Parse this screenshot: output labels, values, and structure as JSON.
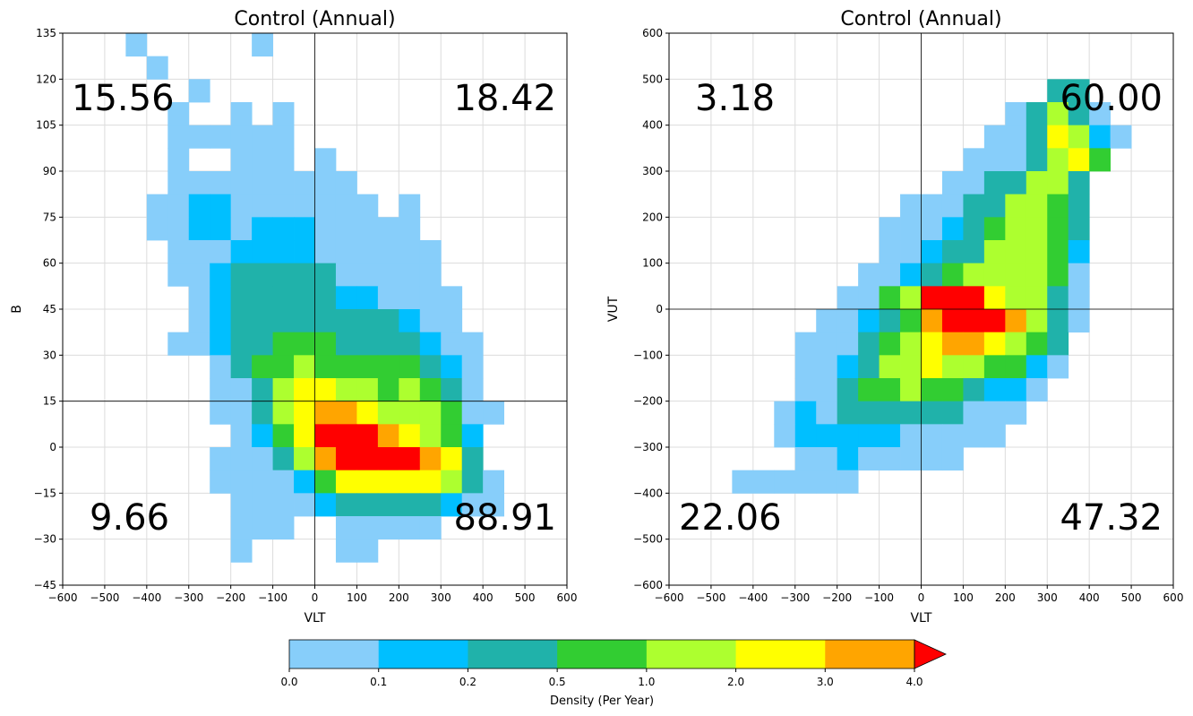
{
  "colorbar": {
    "label": "Density (Per Year)",
    "bounds": [
      0.0,
      0.1,
      0.2,
      0.5,
      1.0,
      2.0,
      3.0,
      4.0
    ],
    "tick_labels": [
      "0.0",
      "0.1",
      "0.2",
      "0.5",
      "1.0",
      "2.0",
      "3.0",
      "4.0"
    ],
    "colors": [
      "#87cefa",
      "#00bfff",
      "#20b2aa",
      "#32cd32",
      "#adff2f",
      "#ffff00",
      "#ffa500"
    ],
    "extend_color": "#ff0000"
  },
  "chart_data": [
    {
      "type": "heatmap",
      "title": "Control (Annual)",
      "xlabel": "VLT",
      "ylabel": "B",
      "xlim": [
        -600,
        600
      ],
      "ylim": [
        -45,
        135
      ],
      "xticks": [
        -600,
        -500,
        -400,
        -300,
        -200,
        -100,
        0,
        100,
        200,
        300,
        400,
        500,
        600
      ],
      "yticks": [
        -45,
        -30,
        -15,
        0,
        15,
        30,
        45,
        60,
        75,
        90,
        105,
        120,
        135
      ],
      "grid": true,
      "x_bin_width": 50,
      "y_bin_width": 7.5,
      "quadrant_lines": {
        "x": 0,
        "y": 15
      },
      "quadrant_values": {
        "top_left": "15.56",
        "top_right": "18.42",
        "bottom_left": "9.66",
        "bottom_right": "88.91"
      },
      "row_y_starts": [
        127.5,
        120,
        112.5,
        105,
        97.5,
        90,
        82.5,
        75,
        67.5,
        60,
        52.5,
        45,
        37.5,
        30,
        22.5,
        15,
        7.5,
        0,
        -7.5,
        -15,
        -22.5,
        -30,
        -37.5
      ],
      "rows": [
        [
          "-450:1",
          "-150:1"
        ],
        [
          "-400:1"
        ],
        [
          "-300:1"
        ],
        [
          "-350:1",
          "-200:1",
          "-100:1"
        ],
        [
          "-350:1",
          "-300:1",
          "-250:1",
          "-200:1",
          "-150:1",
          "-100:1"
        ],
        [
          "-350:1",
          "-200:1",
          "-150:1",
          "-100:1",
          "0:1"
        ],
        [
          "-350:1",
          "-300:1",
          "-250:1",
          "-200:1",
          "-150:1",
          "-100:1",
          "-50:1",
          "0:1",
          "50:1"
        ],
        [
          "-400:1",
          "-350:1",
          "-300:2",
          "-250:2",
          "-200:1",
          "-150:1",
          "-100:1",
          "-50:1",
          "0:1",
          "50:1",
          "100:1",
          "200:1"
        ],
        [
          "-400:1",
          "-350:1",
          "-300:2",
          "-250:2",
          "-200:1",
          "-150:2",
          "-100:2",
          "-50:2",
          "0:1",
          "50:1",
          "100:1",
          "150:1",
          "200:1"
        ],
        [
          "-350:1",
          "-300:1",
          "-250:1",
          "-200:2",
          "-150:2",
          "-100:2",
          "-50:2",
          "0:1",
          "50:1",
          "100:1",
          "150:1",
          "200:1",
          "250:1"
        ],
        [
          "-350:1",
          "-300:1",
          "-250:2",
          "-200:3",
          "-150:3",
          "-100:3",
          "-50:3",
          "0:3",
          "50:1",
          "100:1",
          "150:1",
          "200:1",
          "250:1"
        ],
        [
          "-300:1",
          "-250:2",
          "-200:3",
          "-150:3",
          "-100:3",
          "-50:3",
          "0:3",
          "50:2",
          "100:2",
          "150:1",
          "200:1",
          "250:1",
          "300:1"
        ],
        [
          "-300:1",
          "-250:2",
          "-200:3",
          "-150:3",
          "-100:3",
          "-50:3",
          "0:3",
          "50:3",
          "100:3",
          "150:3",
          "200:2",
          "250:1",
          "300:1"
        ],
        [
          "-350:1",
          "-300:1",
          "-250:2",
          "-200:3",
          "-150:3",
          "-100:4",
          "-50:4",
          "0:4",
          "50:3",
          "100:3",
          "150:3",
          "200:3",
          "250:2",
          "300:1",
          "350:1"
        ],
        [
          "-250:1",
          "-200:3",
          "-150:4",
          "-100:4",
          "-50:5",
          "0:4",
          "50:4",
          "100:4",
          "150:4",
          "200:4",
          "250:3",
          "300:2",
          "350:1"
        ],
        [
          "-250:1",
          "-200:1",
          "-150:3",
          "-100:5",
          "-50:6",
          "0:6",
          "50:5",
          "100:5",
          "150:4",
          "200:5",
          "250:4",
          "300:3",
          "350:1"
        ],
        [
          "-250:1",
          "-200:1",
          "-150:3",
          "-100:5",
          "-50:6",
          "0:7",
          "50:7",
          "100:6",
          "150:5",
          "200:5",
          "250:5",
          "300:4",
          "350:1",
          "400:1"
        ],
        [
          "-200:1",
          "-150:2",
          "-100:4",
          "-50:6",
          "0:8",
          "50:8",
          "100:8",
          "150:7",
          "200:6",
          "250:5",
          "300:4",
          "350:2"
        ],
        [
          "-250:1",
          "-200:1",
          "-150:1",
          "-100:3",
          "-50:5",
          "0:7",
          "50:8",
          "100:8",
          "150:8",
          "200:8",
          "250:7",
          "300:6",
          "350:3"
        ],
        [
          "-250:1",
          "-200:1",
          "-150:1",
          "-100:1",
          "-50:2",
          "0:4",
          "50:6",
          "100:6",
          "150:6",
          "200:6",
          "250:6",
          "300:5",
          "350:3",
          "400:1"
        ],
        [
          "-200:1",
          "-150:1",
          "-100:1",
          "-50:1",
          "0:2",
          "50:3",
          "100:3",
          "150:3",
          "200:3",
          "250:3",
          "300:2",
          "350:1",
          "400:1"
        ],
        [
          "-200:1",
          "-150:1",
          "-100:1",
          "50:1",
          "100:1",
          "150:1",
          "200:1",
          "250:1"
        ],
        [
          "-200:1",
          "50:1",
          "100:1"
        ]
      ]
    },
    {
      "type": "heatmap",
      "title": "Control (Annual)",
      "xlabel": "VLT",
      "ylabel": "VUT",
      "xlim": [
        -600,
        600
      ],
      "ylim": [
        -600,
        600
      ],
      "xticks": [
        -600,
        -500,
        -400,
        -300,
        -200,
        -100,
        0,
        100,
        200,
        300,
        400,
        500,
        600
      ],
      "yticks": [
        -600,
        -500,
        -400,
        -300,
        -200,
        -100,
        0,
        100,
        200,
        300,
        400,
        500,
        600
      ],
      "grid": true,
      "x_bin_width": 50,
      "y_bin_width": 50,
      "quadrant_lines": {
        "x": 0,
        "y": 0
      },
      "quadrant_values": {
        "top_left": "3.18",
        "top_right": "60.00",
        "bottom_left": "22.06",
        "bottom_right": "47.32"
      },
      "row_y_starts": [
        450,
        400,
        350,
        300,
        250,
        200,
        150,
        100,
        50,
        0,
        -50,
        -100,
        -150,
        -200,
        -250,
        -300,
        -350,
        -400
      ],
      "rows": [
        [
          "300:3",
          "350:3"
        ],
        [
          "200:1",
          "250:3",
          "300:5",
          "350:3",
          "400:1"
        ],
        [
          "150:1",
          "200:1",
          "250:3",
          "300:6",
          "350:5",
          "400:2",
          "450:1"
        ],
        [
          "100:1",
          "150:1",
          "200:1",
          "250:3",
          "300:5",
          "350:6",
          "400:4"
        ],
        [
          "50:1",
          "100:1",
          "150:3",
          "200:3",
          "250:5",
          "300:5",
          "350:3"
        ],
        [
          "-50:1",
          "0:1",
          "50:1",
          "100:3",
          "150:3",
          "200:5",
          "250:5",
          "300:4",
          "350:3"
        ],
        [
          "-100:1",
          "-50:1",
          "0:1",
          "50:2",
          "100:3",
          "150:4",
          "200:5",
          "250:5",
          "300:4",
          "350:3"
        ],
        [
          "-100:1",
          "-50:1",
          "0:2",
          "50:3",
          "100:3",
          "150:5",
          "200:5",
          "250:5",
          "300:4",
          "350:2"
        ],
        [
          "-150:1",
          "-100:1",
          "-50:2",
          "0:3",
          "50:4",
          "100:5",
          "150:5",
          "200:5",
          "250:5",
          "300:4",
          "350:1"
        ],
        [
          "-200:1",
          "-150:1",
          "-100:4",
          "-50:5",
          "0:8",
          "50:8",
          "100:8",
          "150:6",
          "200:5",
          "250:5",
          "300:3",
          "350:1"
        ],
        [
          "-250:1",
          "-200:1",
          "-150:2",
          "-100:3",
          "-50:4",
          "0:7",
          "50:8",
          "100:8",
          "150:8",
          "200:7",
          "250:5",
          "300:3",
          "350:1"
        ],
        [
          "-300:1",
          "-250:1",
          "-200:1",
          "-150:3",
          "-100:4",
          "-50:5",
          "0:6",
          "50:7",
          "100:7",
          "150:6",
          "200:5",
          "250:4",
          "300:3"
        ],
        [
          "-300:1",
          "-250:1",
          "-200:2",
          "-150:3",
          "-100:5",
          "-50:5",
          "0:6",
          "50:5",
          "100:5",
          "150:4",
          "200:4",
          "250:2",
          "300:1"
        ],
        [
          "-300:1",
          "-250:1",
          "-200:3",
          "-150:4",
          "-100:4",
          "-50:5",
          "0:4",
          "50:4",
          "100:3",
          "150:2",
          "200:2",
          "250:1"
        ],
        [
          "-350:1",
          "-300:2",
          "-250:1",
          "-200:3",
          "-150:3",
          "-100:3",
          "-50:3",
          "0:3",
          "50:3",
          "100:1",
          "150:1",
          "200:1"
        ],
        [
          "-350:1",
          "-300:2",
          "-250:2",
          "-200:2",
          "-150:2",
          "-100:2",
          "-50:1",
          "0:1",
          "50:1",
          "100:1",
          "150:1"
        ],
        [
          "-300:1",
          "-250:1",
          "-200:2",
          "-150:1",
          "-100:1",
          "-50:1",
          "0:1",
          "50:1"
        ],
        [
          "-450:1",
          "-400:1",
          "-350:1",
          "-300:1",
          "-250:1",
          "-200:1"
        ]
      ]
    }
  ]
}
